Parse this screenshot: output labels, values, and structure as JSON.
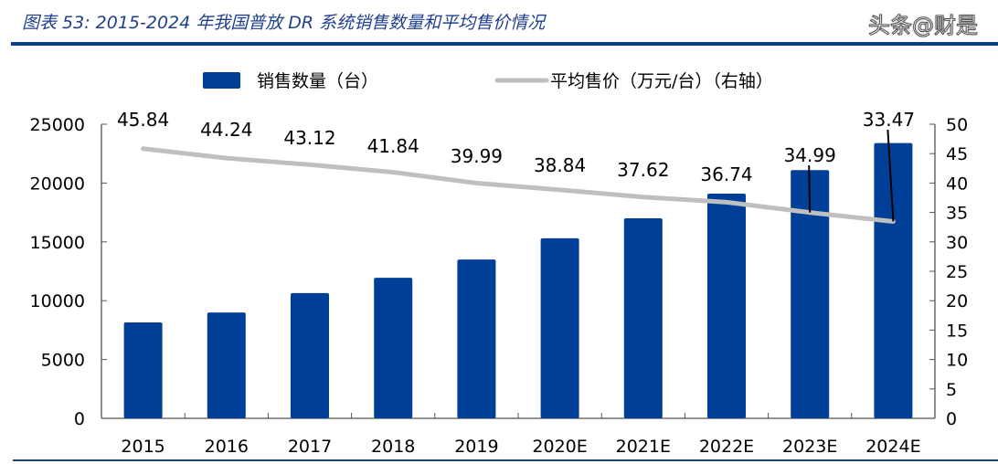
{
  "title": "图表 53:  2015-2024 年我国普放 DR 系统销售数量和平均售价情况",
  "watermark": "头条@财是",
  "chart_data": {
    "type": "bar+line",
    "title": "图表 53:  2015-2024 年我国普放 DR 系统销售数量和平均售价情况",
    "categories": [
      "2015",
      "2016",
      "2017",
      "2018",
      "2019",
      "2020E",
      "2021E",
      "2022E",
      "2023E",
      "2024E"
    ],
    "series": [
      {
        "name": "销售数量（台）",
        "type": "bar",
        "axis": "left",
        "color": "#003f97",
        "values": [
          8150,
          9000,
          10650,
          11950,
          13500,
          15300,
          17000,
          19100,
          21100,
          23400
        ]
      },
      {
        "name": "平均售价（万元/台）（右轴）",
        "type": "line",
        "axis": "right",
        "color": "#bfbfbf",
        "values": [
          45.84,
          44.24,
          43.12,
          41.84,
          39.99,
          38.84,
          37.62,
          36.74,
          34.99,
          33.47
        ],
        "data_labels": [
          "45.84",
          "44.24",
          "43.12",
          "41.84",
          "39.99",
          "38.84",
          "37.62",
          "36.74",
          "34.99",
          "33.47"
        ]
      }
    ],
    "left_axis": {
      "ylim": [
        0,
        25000
      ],
      "ticks": [
        "0",
        "5000",
        "10000",
        "15000",
        "20000",
        "25000"
      ]
    },
    "right_axis": {
      "ylim": [
        0,
        50
      ],
      "ticks": [
        "0",
        "5",
        "10",
        "15",
        "20",
        "25",
        "30",
        "35",
        "40",
        "45",
        "50"
      ]
    },
    "legend_placement": "top",
    "grid": false
  }
}
